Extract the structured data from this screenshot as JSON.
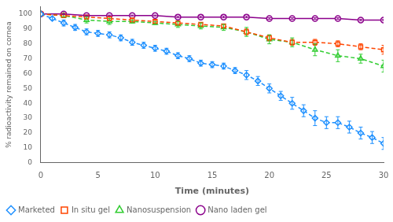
{
  "chart_data": {
    "type": "line",
    "xlabel": "Time (minutes)",
    "ylabel": "% radioactivity remained on cornea",
    "xlim": [
      0,
      30
    ],
    "ylim": [
      0,
      105
    ],
    "xticks": [
      0,
      5,
      10,
      15,
      20,
      25,
      30
    ],
    "yticks": [
      0,
      10,
      20,
      30,
      40,
      50,
      60,
      70,
      80,
      90,
      100
    ],
    "grid": false,
    "legend": "lower left",
    "series": [
      {
        "name": "Marketed",
        "color": "#1E90FF",
        "marker": "diamond",
        "line_style": "dashed",
        "x": [
          0,
          1,
          2,
          3,
          4,
          5,
          6,
          7,
          8,
          9,
          10,
          11,
          12,
          13,
          14,
          15,
          16,
          17,
          18,
          19,
          20,
          21,
          22,
          23,
          24,
          25,
          26,
          27,
          28,
          29,
          30
        ],
        "values": [
          100,
          97,
          94,
          91,
          88,
          87,
          86,
          84,
          81,
          79,
          77,
          75,
          72,
          70,
          67,
          66,
          65,
          62,
          59,
          55,
          50,
          45,
          40,
          35,
          30,
          27,
          27,
          24,
          20,
          17,
          13
        ],
        "errors": [
          0,
          1,
          2,
          2,
          2,
          2,
          2,
          2,
          2,
          2,
          2,
          2,
          2,
          2,
          2,
          2,
          2,
          2,
          3,
          3,
          3,
          3,
          4,
          4,
          5,
          4,
          4,
          4,
          4,
          4,
          4
        ]
      },
      {
        "name": "In situ gel",
        "color": "#FF4500",
        "marker": "square",
        "line_style": "dashed",
        "x": [
          0,
          2,
          4,
          6,
          8,
          10,
          12,
          14,
          16,
          18,
          20,
          22,
          24,
          26,
          28,
          30
        ],
        "values": [
          100,
          99,
          98,
          97,
          96,
          95,
          94,
          93,
          92,
          88,
          84,
          81,
          81,
          80,
          78,
          76
        ],
        "errors": [
          0,
          1,
          1,
          1,
          1,
          1,
          1,
          1,
          1,
          2,
          2,
          2,
          2,
          2,
          2,
          3
        ]
      },
      {
        "name": "Nanosuspension",
        "color": "#32CD32",
        "marker": "triangle",
        "line_style": "dashed",
        "x": [
          0,
          2,
          4,
          6,
          8,
          10,
          12,
          14,
          16,
          18,
          20,
          22,
          24,
          26,
          28,
          30
        ],
        "values": [
          100,
          99,
          96,
          95,
          95,
          94,
          93,
          92,
          91,
          88,
          83,
          81,
          76,
          72,
          70,
          65
        ],
        "errors": [
          0,
          1,
          2,
          2,
          1,
          1,
          2,
          2,
          2,
          3,
          3,
          3,
          4,
          4,
          3,
          4
        ]
      },
      {
        "name": "Nano laden gel",
        "color": "#8B008B",
        "marker": "circle",
        "line_style": "solid",
        "x": [
          0,
          2,
          4,
          6,
          8,
          10,
          12,
          14,
          16,
          18,
          20,
          22,
          24,
          26,
          28,
          30
        ],
        "values": [
          100,
          100,
          99,
          99,
          99,
          99,
          98,
          98,
          98,
          98,
          97,
          97,
          97,
          97,
          96,
          96
        ],
        "errors": [
          0,
          0.3,
          0.3,
          0.3,
          0.3,
          0.3,
          0.5,
          0.5,
          0.5,
          0.5,
          0.5,
          0.5,
          0.5,
          0.5,
          0.5,
          0.5
        ]
      }
    ]
  }
}
